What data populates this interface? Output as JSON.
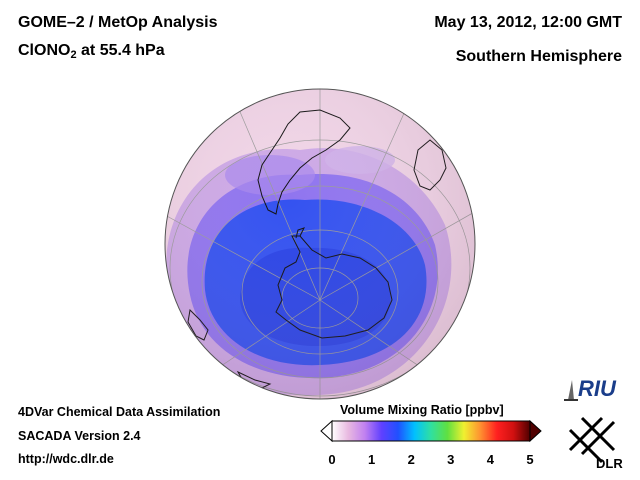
{
  "header": {
    "title_line1": "GOME–2 / MetOp Analysis",
    "title_species": "ClONO",
    "title_species_sub": "2",
    "title_level": " at 55.4 hPa",
    "datetime": "May 13, 2012, 12:00 GMT",
    "region": "Southern Hemisphere"
  },
  "footer": {
    "line1": "4DVar Chemical Data Assimilation",
    "line2": "SACADA Version 2.4",
    "url": "http://wdc.dlr.de"
  },
  "colorbar": {
    "title": "Volume Mixing Ratio [ppbv]",
    "ticks": [
      "0",
      "1",
      "2",
      "3",
      "4",
      "5"
    ],
    "colors": [
      "#ffffff",
      "#e8b8e0",
      "#c080f0",
      "#6040ff",
      "#2050ff",
      "#00c0ff",
      "#30e0a0",
      "#60e040",
      "#f0f030",
      "#ff9030",
      "#ff2020",
      "#d01010",
      "#500000"
    ]
  },
  "logos": {
    "riu": "RIU",
    "dlr": "DLR"
  },
  "map": {
    "projection": "orthographic, south pole view",
    "colors": {
      "background_field": "#f0d4e6",
      "low_values": "#3050f0",
      "mid_values": "#9070e8",
      "coastline": "#111111",
      "gridlines": "#999999"
    }
  }
}
